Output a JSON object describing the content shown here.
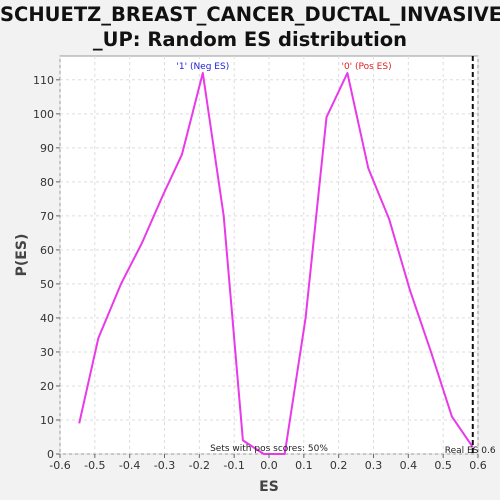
{
  "chart_data": {
    "type": "line",
    "title_line1": "SCHUETZ_BREAST_CANCER_DUCTAL_INVASIVE",
    "title_line2": "_UP: Random ES distribution",
    "xlabel": "ES",
    "ylabel": "P(ES)",
    "xlim": [
      -0.6,
      0.6
    ],
    "ylim": [
      0,
      117
    ],
    "xticks": [
      "-0.6",
      "-0.5",
      "-0.4",
      "-0.3",
      "-0.2",
      "-0.1",
      "0.0",
      "0.1",
      "0.2",
      "0.3",
      "0.4",
      "0.5",
      "0.6"
    ],
    "xtick_values": [
      -0.6,
      -0.5,
      -0.4,
      -0.3,
      -0.2,
      -0.1,
      0.0,
      0.1,
      0.2,
      0.3,
      0.4,
      0.5,
      0.6
    ],
    "yticks": [
      "0",
      "10",
      "20",
      "30",
      "40",
      "50",
      "60",
      "70",
      "80",
      "90",
      "100",
      "110"
    ],
    "ytick_values": [
      0,
      10,
      20,
      30,
      40,
      50,
      60,
      70,
      80,
      90,
      100,
      110
    ],
    "grid": true,
    "series": [
      {
        "color": "#e83ae8",
        "x": [
          -0.545,
          -0.49,
          -0.425,
          -0.365,
          -0.305,
          -0.25,
          -0.19,
          -0.13,
          -0.075,
          -0.015,
          0.045,
          0.105,
          0.165,
          0.225,
          0.285,
          0.345,
          0.405,
          0.465,
          0.525,
          0.585
        ],
        "y": [
          9,
          34,
          50,
          62,
          76,
          88,
          112,
          70,
          4,
          0,
          0,
          40,
          99,
          112,
          84,
          69,
          48,
          30,
          11,
          2
        ]
      }
    ],
    "annotations": {
      "neg_label": "'1' (Neg ES)",
      "neg_x": -0.19,
      "neg_color": "#2222dd",
      "pos_label": "'0' (Pos ES)",
      "pos_x": 0.28,
      "pos_color": "#dd2222",
      "pos_scores_text": "Sets with pos scores: 50%",
      "real_es_label": "Real ES 0.6",
      "real_es_x": 0.585
    }
  }
}
